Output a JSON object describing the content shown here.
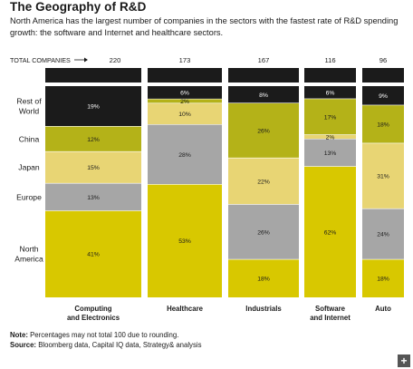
{
  "title": "The Geography of R&D",
  "subtitle": "North America has the largest number of companies in the sectors with the fastest rate of R&D spending growth: the software and Internet and healthcare sectors.",
  "total_label": "TOTAL COMPANIES",
  "expand_icon": "+",
  "footnote": {
    "note_label": "Note:",
    "note_text": " Percentages may not total 100 due to rounding.",
    "source_label": "Source:",
    "source_text": " Bloomberg data, Capital IQ data, Strategy& analysis"
  },
  "colors": {
    "North America": "#d8c800",
    "Europe": "#a6a6a6",
    "Japan": "#e8d574",
    "China": "#b4b218",
    "Rest of World": "#1b1b1b"
  },
  "chart_data": {
    "type": "bar",
    "stacked": true,
    "normalized": true,
    "title": "The Geography of R&D",
    "categories": [
      "Computing and Electronics",
      "Healthcare",
      "Industrials",
      "Software and Internet",
      "Auto"
    ],
    "category_labels": [
      [
        "Computing",
        "and Electronics"
      ],
      [
        "Healthcare"
      ],
      [
        "Industrials"
      ],
      [
        "Software",
        "and Internet"
      ],
      [
        "Auto"
      ]
    ],
    "totals": [
      220,
      173,
      167,
      116,
      96
    ],
    "series_order": [
      "North America",
      "Europe",
      "Japan",
      "China",
      "Rest of World"
    ],
    "row_labels": [
      {
        "name": "Rest of World",
        "lines": [
          "Rest of",
          "World"
        ]
      },
      {
        "name": "China",
        "lines": [
          "China"
        ]
      },
      {
        "name": "Japan",
        "lines": [
          "Japan"
        ]
      },
      {
        "name": "Europe",
        "lines": [
          "Europe"
        ]
      },
      {
        "name": "North America",
        "lines": [
          "North",
          "America"
        ]
      }
    ],
    "series": [
      {
        "name": "North America",
        "values": [
          41,
          53,
          18,
          62,
          18
        ]
      },
      {
        "name": "Europe",
        "values": [
          13,
          28,
          26,
          13,
          24
        ]
      },
      {
        "name": "Japan",
        "values": [
          15,
          10,
          22,
          2,
          31
        ]
      },
      {
        "name": "China",
        "values": [
          12,
          2,
          26,
          17,
          18
        ]
      },
      {
        "name": "Rest of World",
        "values": [
          19,
          6,
          8,
          6,
          9
        ]
      }
    ],
    "value_suffix": "%"
  }
}
